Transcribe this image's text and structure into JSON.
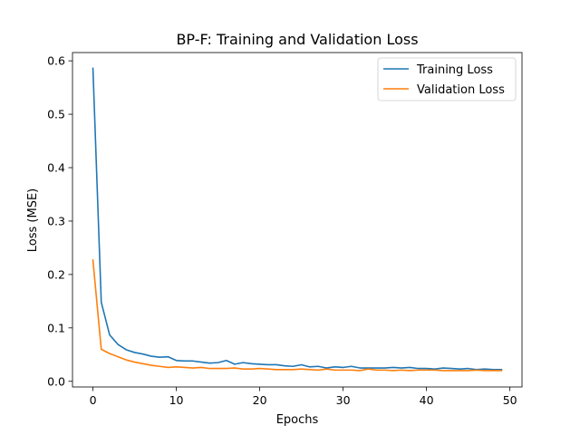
{
  "chart_data": {
    "type": "line",
    "title": "BP-F: Training and Validation Loss",
    "xlabel": "Epochs",
    "ylabel": "Loss (MSE)",
    "xlim": [
      -2.45,
      51.45
    ],
    "ylim": [
      -0.0106,
      0.6155
    ],
    "xticks": [
      0,
      10,
      20,
      30,
      40,
      50
    ],
    "yticks": [
      0.0,
      0.1,
      0.2,
      0.3,
      0.4,
      0.5,
      0.6
    ],
    "ytick_labels": [
      "0.0",
      "0.1",
      "0.2",
      "0.3",
      "0.4",
      "0.5",
      "0.6"
    ],
    "legend_position": "top-right",
    "grid": false,
    "x": [
      0,
      1,
      2,
      3,
      4,
      5,
      6,
      7,
      8,
      9,
      10,
      11,
      12,
      13,
      14,
      15,
      16,
      17,
      18,
      19,
      20,
      21,
      22,
      23,
      24,
      25,
      26,
      27,
      28,
      29,
      30,
      31,
      32,
      33,
      34,
      35,
      36,
      37,
      38,
      39,
      40,
      41,
      42,
      43,
      44,
      45,
      46,
      47,
      48,
      49
    ],
    "series": [
      {
        "name": "Training Loss",
        "color": "#1f77b4",
        "values": [
          0.586,
          0.148,
          0.087,
          0.069,
          0.059,
          0.054,
          0.051,
          0.047,
          0.045,
          0.046,
          0.039,
          0.038,
          0.038,
          0.036,
          0.034,
          0.035,
          0.039,
          0.032,
          0.035,
          0.033,
          0.032,
          0.031,
          0.031,
          0.029,
          0.028,
          0.031,
          0.027,
          0.028,
          0.025,
          0.027,
          0.026,
          0.028,
          0.025,
          0.025,
          0.025,
          0.025,
          0.026,
          0.025,
          0.026,
          0.024,
          0.024,
          0.023,
          0.025,
          0.024,
          0.023,
          0.024,
          0.022,
          0.023,
          0.022,
          0.022
        ]
      },
      {
        "name": "Validation Loss",
        "color": "#ff7f0e",
        "values": [
          0.227,
          0.06,
          0.052,
          0.046,
          0.04,
          0.036,
          0.033,
          0.03,
          0.028,
          0.026,
          0.027,
          0.026,
          0.025,
          0.026,
          0.024,
          0.024,
          0.024,
          0.025,
          0.023,
          0.023,
          0.024,
          0.023,
          0.022,
          0.022,
          0.022,
          0.023,
          0.022,
          0.021,
          0.023,
          0.021,
          0.021,
          0.021,
          0.02,
          0.023,
          0.021,
          0.021,
          0.02,
          0.021,
          0.02,
          0.021,
          0.021,
          0.021,
          0.02,
          0.02,
          0.02,
          0.02,
          0.021,
          0.02,
          0.02,
          0.02
        ]
      }
    ]
  }
}
